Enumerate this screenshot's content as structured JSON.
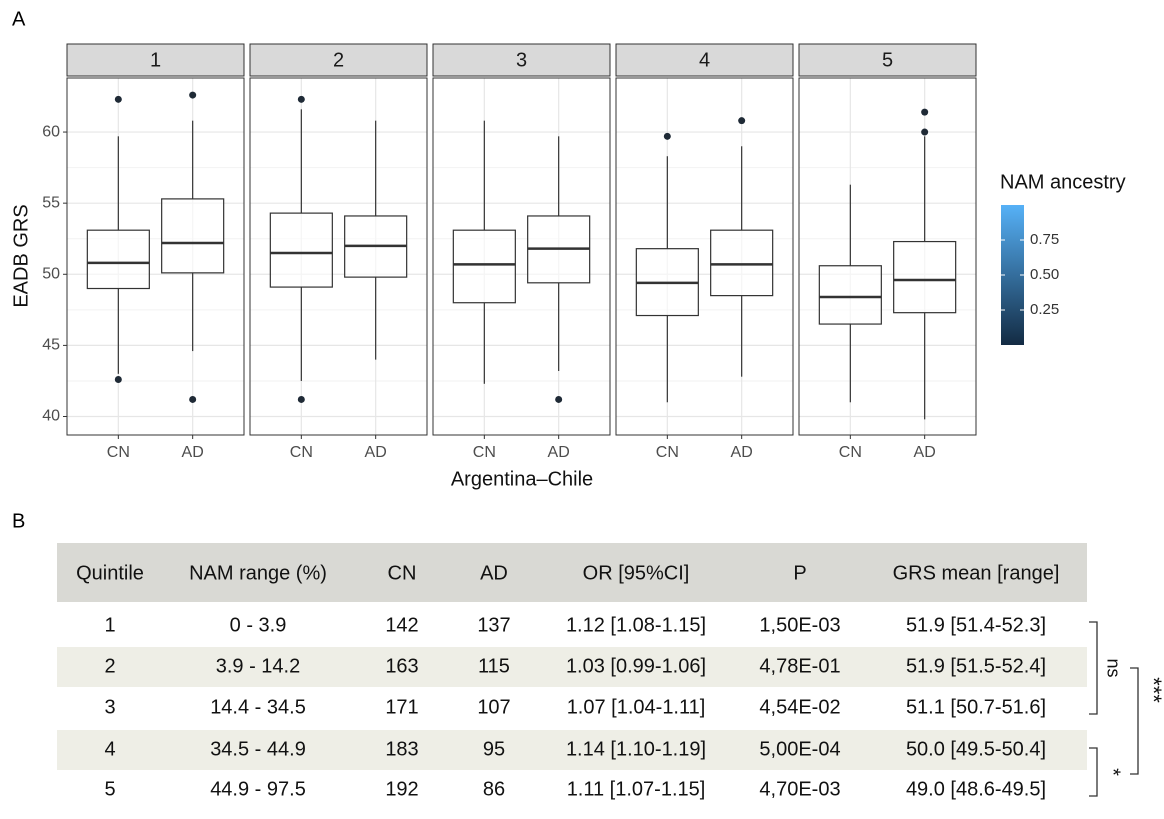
{
  "chart_data": {
    "type": "box",
    "panel_label": "A",
    "facets": [
      {
        "name": "1",
        "boxes": [
          {
            "low": 43,
            "q1": 49,
            "median": 50.8,
            "q3": 53.1,
            "high": 59.7,
            "outliers": [
              62.3,
              42.6
            ]
          },
          {
            "low": 44.6,
            "q1": 50.1,
            "median": 52.2,
            "q3": 55.3,
            "high": 60.8,
            "outliers": [
              62.6,
              41.2
            ]
          }
        ]
      },
      {
        "name": "2",
        "boxes": [
          {
            "low": 42.5,
            "q1": 49.1,
            "median": 51.5,
            "q3": 54.3,
            "high": 61.6,
            "outliers": [
              62.3,
              41.2
            ]
          },
          {
            "low": 44,
            "q1": 49.8,
            "median": 52,
            "q3": 54.1,
            "high": 60.8,
            "outliers": []
          }
        ]
      },
      {
        "name": "3",
        "boxes": [
          {
            "low": 42.3,
            "q1": 48,
            "median": 50.7,
            "q3": 53.1,
            "high": 60.8,
            "outliers": []
          },
          {
            "low": 43.2,
            "q1": 49.4,
            "median": 51.8,
            "q3": 54.1,
            "high": 59.7,
            "outliers": [
              41.2
            ]
          }
        ]
      },
      {
        "name": "4",
        "boxes": [
          {
            "low": 41,
            "q1": 47.1,
            "median": 49.4,
            "q3": 51.8,
            "high": 58.3,
            "outliers": [
              59.7
            ]
          },
          {
            "low": 42.8,
            "q1": 48.5,
            "median": 50.7,
            "q3": 53.1,
            "high": 59,
            "outliers": [
              60.8
            ]
          }
        ]
      },
      {
        "name": "5",
        "boxes": [
          {
            "low": 41,
            "q1": 46.5,
            "median": 48.4,
            "q3": 50.6,
            "high": 56.3,
            "outliers": []
          },
          {
            "low": 39.8,
            "q1": 47.3,
            "median": 49.6,
            "q3": 52.3,
            "high": 59.7,
            "outliers": [
              60,
              61.4
            ]
          }
        ]
      }
    ],
    "categories": [
      "CN",
      "AD"
    ],
    "x_label": "Argentina–Chile",
    "y_label": "EADB GRS",
    "ylim": [
      38.7,
      63.8
    ],
    "yticks": [
      40,
      45,
      50,
      55,
      60
    ],
    "grid": true,
    "outlier_color": "#1f2a36",
    "legend_title": "NAM ancestry",
    "colors": [
      "#132B43",
      "#56B1F7"
    ],
    "clim": [
      0,
      1
    ],
    "cticks": [
      0.25,
      {
        "value": 0.5,
        "label": "0.50"
      },
      0.75
    ]
  },
  "table": {
    "panel_label": "B",
    "header": [
      "Quintile",
      "NAM range (%)",
      "CN",
      "AD",
      "OR [95%CI]",
      "P",
      "GRS mean [range]"
    ],
    "rows": [
      [
        "1",
        "0 - 3.9",
        "142",
        "137",
        "1.12 [1.08-1.15]",
        "1,50E-03",
        "51.9 [51.4-52.3]"
      ],
      [
        "2",
        "3.9 - 14.2",
        "163",
        "115",
        "1.03 [0.99-1.06]",
        "4,78E-01",
        "51.9 [51.5-52.4]"
      ],
      [
        "3",
        "14.4 - 34.5",
        "171",
        "107",
        "1.07 [1.04-1.11]",
        "4,54E-02",
        "51.1 [50.7-51.6]"
      ],
      [
        "4",
        "34.5 - 44.9",
        "183",
        "95",
        "1.14 [1.10-1.19]",
        "5,00E-04",
        "50.0 [49.5-50.4]"
      ],
      [
        "5",
        "44.9 - 97.5",
        "192",
        "86",
        "1.11 [1.07-1.15]",
        "4,70E-03",
        "49.0 [48.6-49.5]"
      ]
    ],
    "significance": [
      "ns",
      "***",
      "*"
    ]
  }
}
